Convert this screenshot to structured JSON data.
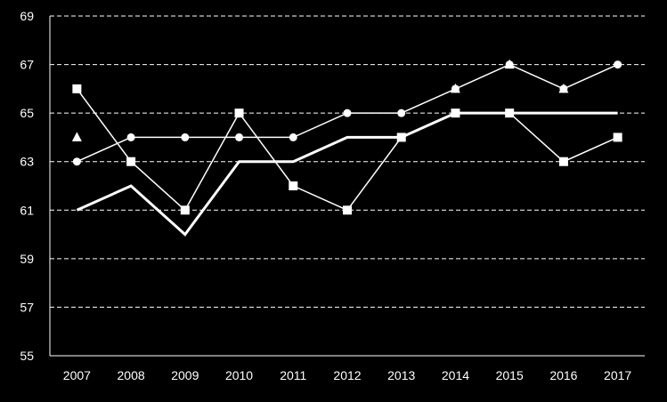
{
  "chart_data": {
    "type": "line",
    "x": [
      "2007",
      "2008",
      "2009",
      "2010",
      "2011",
      "2012",
      "2013",
      "2014",
      "2015",
      "2016",
      "2017"
    ],
    "ylim": [
      55,
      69
    ],
    "yticks": [
      "55",
      "57",
      "59",
      "61",
      "63",
      "65",
      "67",
      "69"
    ],
    "grid": true,
    "background": "#000000",
    "line_color": "#ffffff",
    "series": [
      {
        "marker": "circle",
        "line_width": 1.5,
        "values": [
          63,
          64,
          64,
          64,
          64,
          65,
          65,
          66,
          67,
          66,
          67
        ]
      },
      {
        "marker": "square",
        "line_width": 1.5,
        "values": [
          66,
          63,
          61,
          65,
          62,
          61,
          64,
          65,
          65,
          63,
          64
        ]
      },
      {
        "marker": "none",
        "line_width": 3,
        "values": [
          61,
          62,
          60,
          63,
          63,
          64,
          64,
          65,
          65,
          65,
          65
        ]
      },
      {
        "marker": "triangle",
        "line_width": 0,
        "values": [
          64,
          null,
          null,
          null,
          null,
          null,
          null,
          66,
          67,
          66,
          null
        ]
      }
    ]
  }
}
